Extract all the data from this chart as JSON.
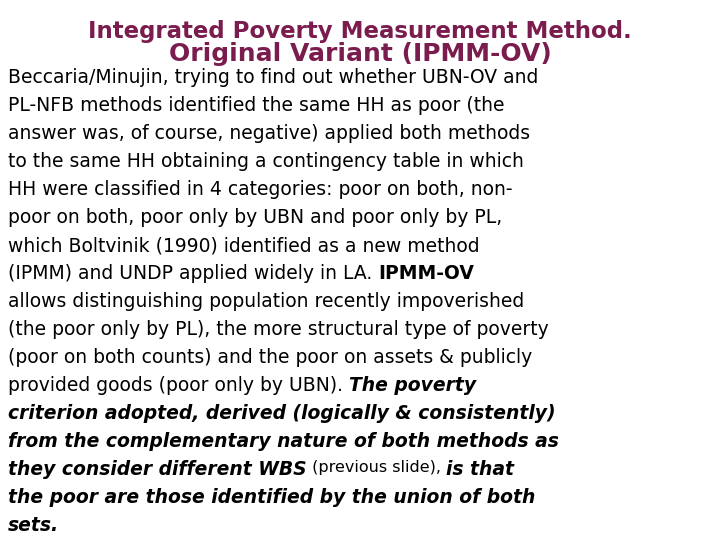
{
  "title_line1": "Integrated Poverty Measurement Method.",
  "title_line2": "Original Variant (IPMM-OV)",
  "title_color": "#7B1C4E",
  "background_color": "#FFFFFF",
  "body_fontsize": 13.5,
  "title_fontsize1": 16.5,
  "title_fontsize2": 18,
  "small_fontsize": 11.5,
  "lines": [
    {
      "segments": [
        {
          "text": "Beccaria/Minujin, trying to find out whether UBN-OV and",
          "style": "normal"
        }
      ]
    },
    {
      "segments": [
        {
          "text": "PL-NFB methods identified the same HH as poor (the",
          "style": "normal"
        }
      ]
    },
    {
      "segments": [
        {
          "text": "answer was, of course, negative) applied both methods",
          "style": "normal"
        }
      ]
    },
    {
      "segments": [
        {
          "text": "to the same HH obtaining a contingency table in which",
          "style": "normal"
        }
      ]
    },
    {
      "segments": [
        {
          "text": "HH were classified in 4 categories: poor on both, non-",
          "style": "normal"
        }
      ]
    },
    {
      "segments": [
        {
          "text": "poor on both, poor only by UBN and poor only by PL,",
          "style": "normal"
        }
      ]
    },
    {
      "segments": [
        {
          "text": "which Boltvinik (1990) identified as a new method",
          "style": "normal"
        }
      ]
    },
    {
      "segments": [
        {
          "text": "(IPMM) and UNDP applied widely in LA. ",
          "style": "normal"
        },
        {
          "text": "IPMM-OV",
          "style": "bold"
        }
      ]
    },
    {
      "segments": [
        {
          "text": "allows distinguishing population recently impoverished",
          "style": "normal"
        }
      ]
    },
    {
      "segments": [
        {
          "text": "(the poor only by PL), the more structural type of poverty",
          "style": "normal"
        }
      ]
    },
    {
      "segments": [
        {
          "text": "(poor on both counts) and the poor on assets & publicly",
          "style": "normal"
        }
      ]
    },
    {
      "segments": [
        {
          "text": "provided goods (poor only by UBN). ",
          "style": "normal"
        },
        {
          "text": "The poverty",
          "style": "bold_italic"
        }
      ]
    },
    {
      "segments": [
        {
          "text": "criterion adopted, derived (logically & consistently)",
          "style": "bold_italic"
        }
      ]
    },
    {
      "segments": [
        {
          "text": "from the complementary nature of both methods as",
          "style": "bold_italic"
        }
      ]
    },
    {
      "segments": [
        {
          "text": "they consider different WBS",
          "style": "bold_italic"
        },
        {
          "text": " (previous slide), ",
          "style": "normal_small"
        },
        {
          "text": "is that",
          "style": "bold_italic"
        }
      ]
    },
    {
      "segments": [
        {
          "text": "the poor are those identified by the union of both",
          "style": "bold_italic"
        }
      ]
    },
    {
      "segments": [
        {
          "text": "sets.",
          "style": "bold_italic"
        }
      ]
    }
  ]
}
